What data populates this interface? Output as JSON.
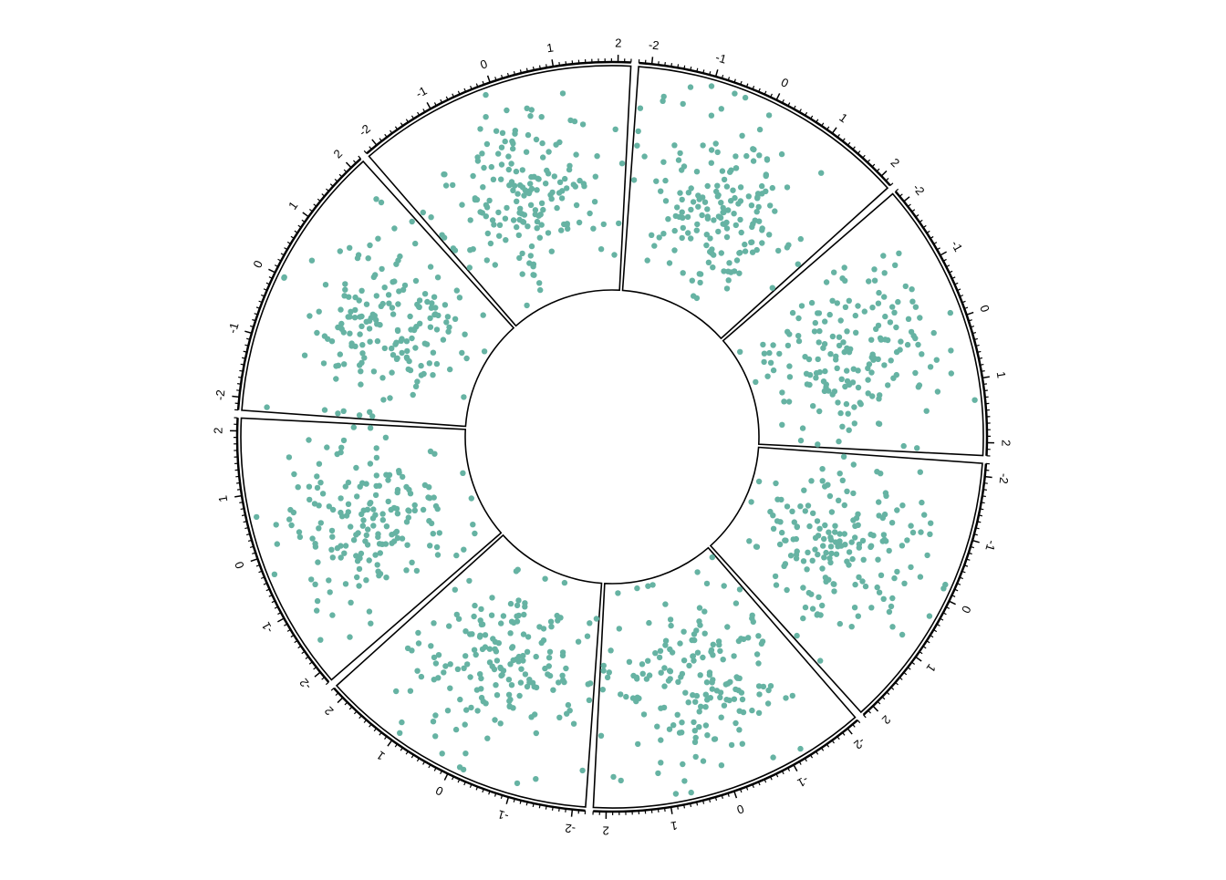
{
  "chart_data": {
    "type": "scatter",
    "layout": "circular-sectors",
    "title": "",
    "sector_count": 8,
    "x_range": [
      -2.2,
      2.2
    ],
    "y_range": [
      -2.5,
      2.5
    ],
    "x_ticks": [
      "-2",
      "-1",
      "0",
      "1",
      "2"
    ],
    "point_color": "#66b3a3",
    "axis_color": "#000000",
    "grid": false,
    "points_per_sector": 180
  }
}
